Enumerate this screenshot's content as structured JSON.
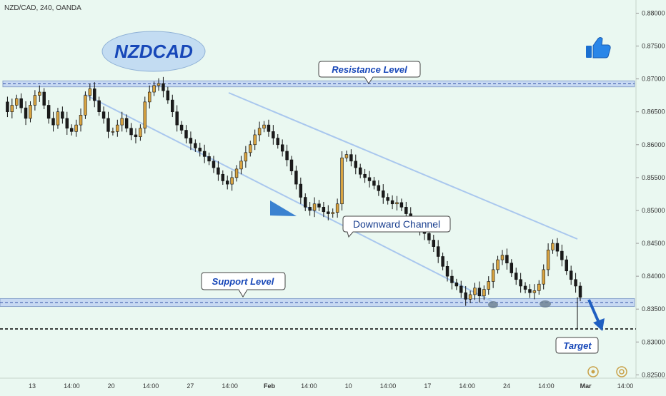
{
  "header": {
    "symbol_label": "NZD/CAD, 240, OANDA"
  },
  "annotations": {
    "pair_badge": "NZDCAD",
    "resistance_label": "Resistance Level",
    "support_label": "Support Level",
    "channel_label": "Downward Channel",
    "target_label": "Target"
  },
  "icons": {
    "thumbs_up": "thumbs-up-icon",
    "arrow": "down-arrow-icon",
    "target_arrow": "target-arrow-icon",
    "footer_left": "replay-icon",
    "footer_right": "settings-icon"
  },
  "colors": {
    "background": "#eaf8f1",
    "bull_candle": "#d9a441",
    "bear_candle": "#1b1b1b",
    "channel_line": "#a9c7ee",
    "level_zone": "#c7d9f2",
    "badge_fill": "#c3dcf2",
    "badge_text": "#1747b8",
    "target_line": "#000000",
    "arrow_blue": "#1f5fc1"
  },
  "chart_data": {
    "type": "candlestick",
    "symbol": "NZD/CAD",
    "timeframe": "240",
    "source": "OANDA",
    "ylim": [
      0.8245,
      0.882
    ],
    "y_ticks": [
      "0.88000",
      "0.87500",
      "0.87000",
      "0.86500",
      "0.86000",
      "0.85500",
      "0.85000",
      "0.84500",
      "0.84000",
      "0.83500",
      "0.83000",
      "0.82500"
    ],
    "x_ticks": [
      "13",
      "14:00",
      "20",
      "14:00",
      "27",
      "14:00",
      "Feb",
      "14:00",
      "10",
      "14:00",
      "17",
      "14:00",
      "24",
      "14:00",
      "Mar",
      "14:00"
    ],
    "resistance_zone": [
      0.8688,
      0.8697
    ],
    "support_zone": [
      0.8354,
      0.8366
    ],
    "target_level": 0.832,
    "close_path": [
      0.8665,
      0.865,
      0.866,
      0.867,
      0.8656,
      0.864,
      0.866,
      0.8675,
      0.868,
      0.866,
      0.864,
      0.863,
      0.865,
      0.864,
      0.8625,
      0.862,
      0.863,
      0.8645,
      0.8675,
      0.8685,
      0.8667,
      0.865,
      0.864,
      0.862,
      0.862,
      0.863,
      0.864,
      0.8625,
      0.8615,
      0.8612,
      0.8625,
      0.8665,
      0.868,
      0.869,
      0.8693,
      0.8682,
      0.8668,
      0.865,
      0.863,
      0.8622,
      0.861,
      0.8602,
      0.8595,
      0.859,
      0.8582,
      0.8575,
      0.8565,
      0.8555,
      0.8545,
      0.854,
      0.855,
      0.8563,
      0.8575,
      0.8588,
      0.86,
      0.8615,
      0.8625,
      0.863,
      0.862,
      0.861,
      0.86,
      0.859,
      0.8577,
      0.856,
      0.854,
      0.852,
      0.8505,
      0.85,
      0.851,
      0.8505,
      0.8498,
      0.8495,
      0.8497,
      0.851,
      0.858,
      0.8585,
      0.8575,
      0.8565,
      0.8555,
      0.855,
      0.8545,
      0.8538,
      0.853,
      0.852,
      0.8515,
      0.851,
      0.8512,
      0.8505,
      0.8495,
      0.8485,
      0.8475,
      0.847,
      0.8465,
      0.8455,
      0.8445,
      0.843,
      0.8415,
      0.84,
      0.839,
      0.8385,
      0.8375,
      0.8365,
      0.8372,
      0.8382,
      0.837,
      0.838,
      0.8392,
      0.841,
      0.8425,
      0.8432,
      0.842,
      0.8405,
      0.8395,
      0.8385,
      0.838,
      0.8375,
      0.8378,
      0.8388,
      0.841,
      0.844,
      0.845,
      0.8438,
      0.8425,
      0.8408,
      0.8395,
      0.8385,
      0.8368
    ]
  }
}
